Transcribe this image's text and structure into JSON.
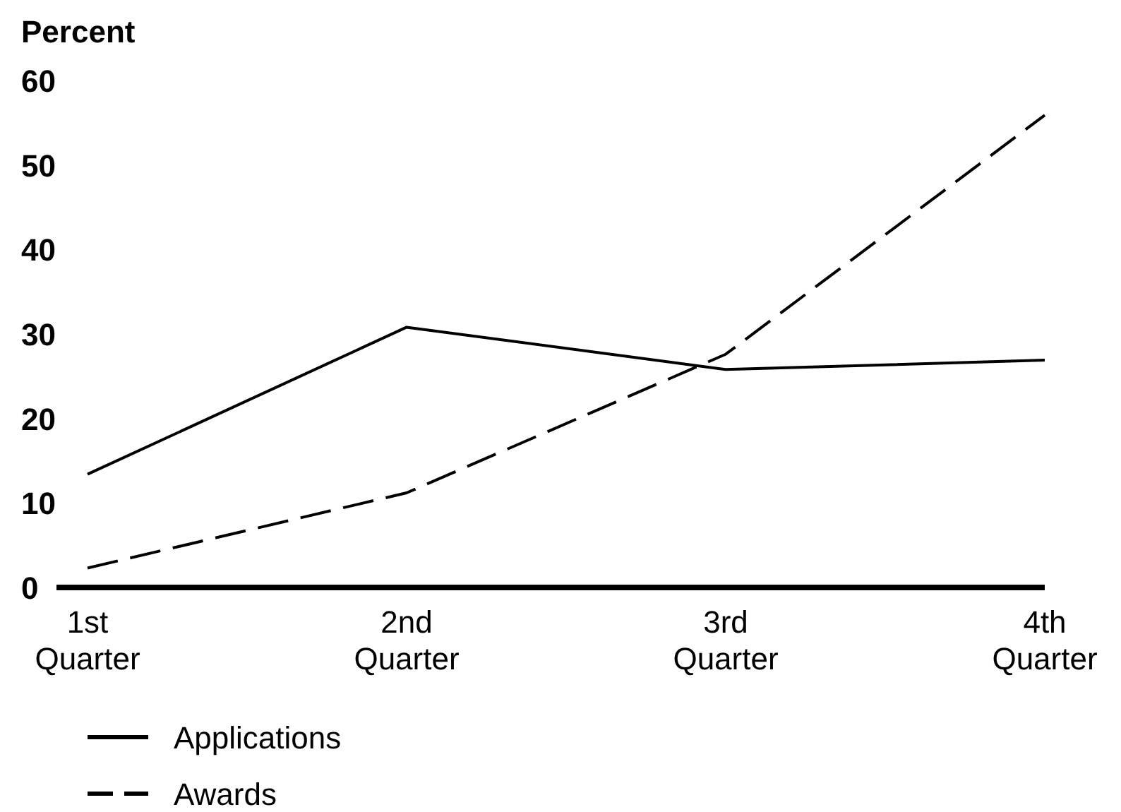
{
  "chart_data": {
    "type": "line",
    "ylabel": "Percent",
    "categories": [
      "1st Quarter",
      "2nd Quarter",
      "3rd Quarter",
      "4th Quarter"
    ],
    "series": [
      {
        "name": "Applications",
        "color": "#000000",
        "line_style": "solid",
        "values": [
          13.4,
          30.8,
          25.8,
          26.9
        ]
      },
      {
        "name": "Awards",
        "color": "#000000",
        "line_style": "dashed",
        "values": [
          2.3,
          11.2,
          27.6,
          55.9
        ]
      }
    ],
    "ylim": [
      0,
      60
    ],
    "yticks": [
      0,
      10,
      20,
      30,
      40,
      50,
      60
    ],
    "grid": false,
    "legend": "bottom",
    "marker": "none"
  }
}
